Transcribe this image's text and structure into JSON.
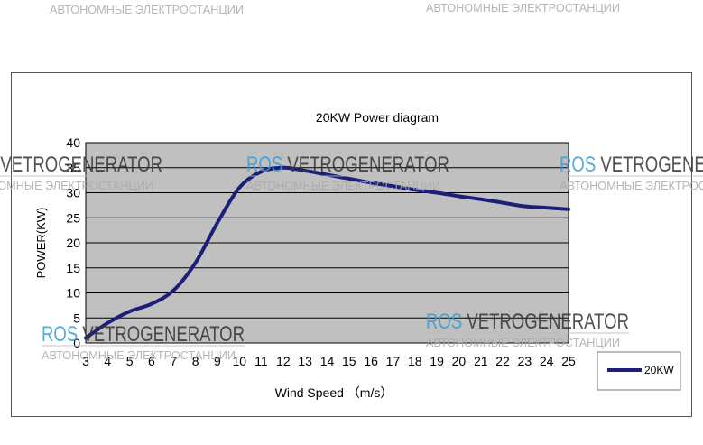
{
  "chart_data": {
    "type": "line",
    "title": "20KW Power diagram",
    "xlabel": "Wind Speed （m/s）",
    "ylabel": "POWER(KW)",
    "xlim": [
      3,
      25
    ],
    "ylim": [
      0,
      40
    ],
    "x_ticks": [
      3,
      4,
      5,
      6,
      7,
      8,
      9,
      10,
      11,
      12,
      13,
      14,
      15,
      16,
      17,
      18,
      19,
      20,
      21,
      22,
      23,
      24,
      25
    ],
    "y_ticks": [
      0,
      5,
      10,
      15,
      20,
      25,
      30,
      35,
      40
    ],
    "grid": true,
    "legend_position": "bottom-right",
    "series": [
      {
        "name": "20KW",
        "color": "#1c1f7a",
        "x": [
          3,
          4,
          5,
          6,
          7,
          8,
          9,
          10,
          11,
          12,
          13,
          14,
          15,
          16,
          17,
          18,
          19,
          20,
          21,
          22,
          23,
          24,
          25
        ],
        "y": [
          1,
          4,
          6.3,
          7.8,
          10.5,
          16,
          24,
          31,
          34.2,
          35,
          34.4,
          33.6,
          32.8,
          32,
          31.3,
          30.6,
          30,
          29.3,
          28.7,
          28,
          27.3,
          27,
          26.7
        ]
      }
    ]
  },
  "watermarks": [
    {
      "brand": "ROS",
      "name": "VETROGENERATOR",
      "sub": "АВТОНОМНЫЕ ЭЛЕКТРОСТАНЦИИ"
    }
  ],
  "colors": {
    "plot_bg": "#c0c0c0",
    "grid": "#000000",
    "line": "#1c1f7a",
    "watermark_brand": "#3a9bd5",
    "watermark_text": "#555555"
  }
}
